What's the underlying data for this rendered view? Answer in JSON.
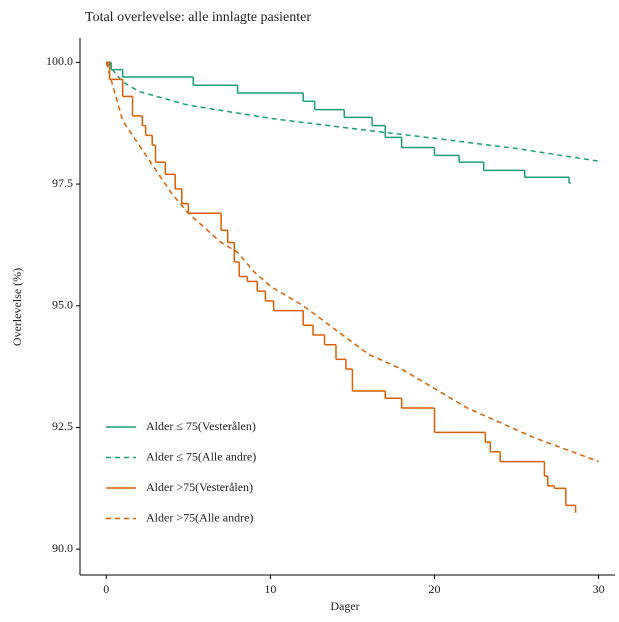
{
  "chart_data": {
    "type": "line",
    "title": "Total overlevelse: alle innlagte pasienter",
    "x_label": "Dager",
    "y_label": "Overlevelse (%)",
    "xlim": [
      -1.6,
      31
    ],
    "ylim": [
      89.47,
      100.5
    ],
    "xticks": [
      0,
      10,
      20,
      30
    ],
    "yticks": [
      {
        "value": 90,
        "label": "90.0"
      },
      {
        "value": 92.5,
        "label": "92.5"
      },
      {
        "value": 95,
        "label": "95.0"
      },
      {
        "value": 97.5,
        "label": "97.5"
      },
      {
        "value": 100,
        "label": "100.0"
      }
    ],
    "legend_position": "bottom-left",
    "series": [
      {
        "name": "Alder ≤ 75(Vesterålen)",
        "color": "#1b9e77",
        "dashed": false,
        "step": true,
        "x": [
          0,
          0.3,
          1,
          5.3,
          8,
          12,
          12.7,
          14.5,
          16.2,
          17,
          18,
          20,
          21.5,
          23,
          25.5,
          28.2,
          28.3
        ],
        "values": [
          100,
          99.85,
          99.7,
          99.53,
          99.37,
          99.2,
          99.03,
          98.87,
          98.7,
          98.46,
          98.25,
          98.09,
          97.95,
          97.78,
          97.64,
          97.52,
          97.52
        ]
      },
      {
        "name": "Alder ≤ 75(Alle andre)",
        "color": "#1b9e77",
        "dashed": true,
        "step": false,
        "x": [
          0,
          1,
          2,
          5,
          10,
          15,
          20,
          25,
          30
        ],
        "values": [
          100,
          99.6,
          99.4,
          99.12,
          98.85,
          98.64,
          98.44,
          98.23,
          97.97
        ]
      },
      {
        "name": "Alder >75(Vesterålen)",
        "color": "#d95f02",
        "dashed": false,
        "step": true,
        "x": [
          0,
          0.2,
          1,
          1.6,
          2.2,
          2.4,
          2.8,
          3,
          3.6,
          4.2,
          4.6,
          5,
          7,
          7.4,
          7.8,
          8.1,
          8.6,
          9.2,
          9.7,
          10.2,
          12,
          12.6,
          13.3,
          14,
          14.6,
          15,
          17,
          18,
          20,
          23.1,
          23.4,
          24,
          26.7,
          26.9,
          27.3,
          28,
          28.6
        ],
        "values": [
          100,
          99.65,
          99.3,
          98.9,
          98.7,
          98.5,
          98.3,
          97.95,
          97.7,
          97.4,
          97.1,
          96.9,
          96.55,
          96.3,
          95.9,
          95.6,
          95.5,
          95.3,
          95.1,
          94.9,
          94.6,
          94.4,
          94.2,
          93.9,
          93.7,
          93.25,
          93.1,
          92.9,
          92.4,
          92.2,
          92,
          91.8,
          91.5,
          91.3,
          91.25,
          90.9,
          90.75
        ]
      },
      {
        "name": "Alder >75(Alle andre)",
        "color": "#d95f02",
        "dashed": true,
        "step": false,
        "x": [
          0,
          1,
          2,
          3,
          4,
          5,
          6,
          7,
          8,
          9,
          10,
          12,
          14,
          16,
          18,
          20,
          22,
          24,
          26,
          28,
          30
        ],
        "values": [
          100,
          98.8,
          98.3,
          97.8,
          97.3,
          96.9,
          96.6,
          96.3,
          96.1,
          95.7,
          95.4,
          95,
          94.5,
          94,
          93.7,
          93.3,
          92.9,
          92.6,
          92.3,
          92.05,
          91.8
        ]
      }
    ]
  }
}
